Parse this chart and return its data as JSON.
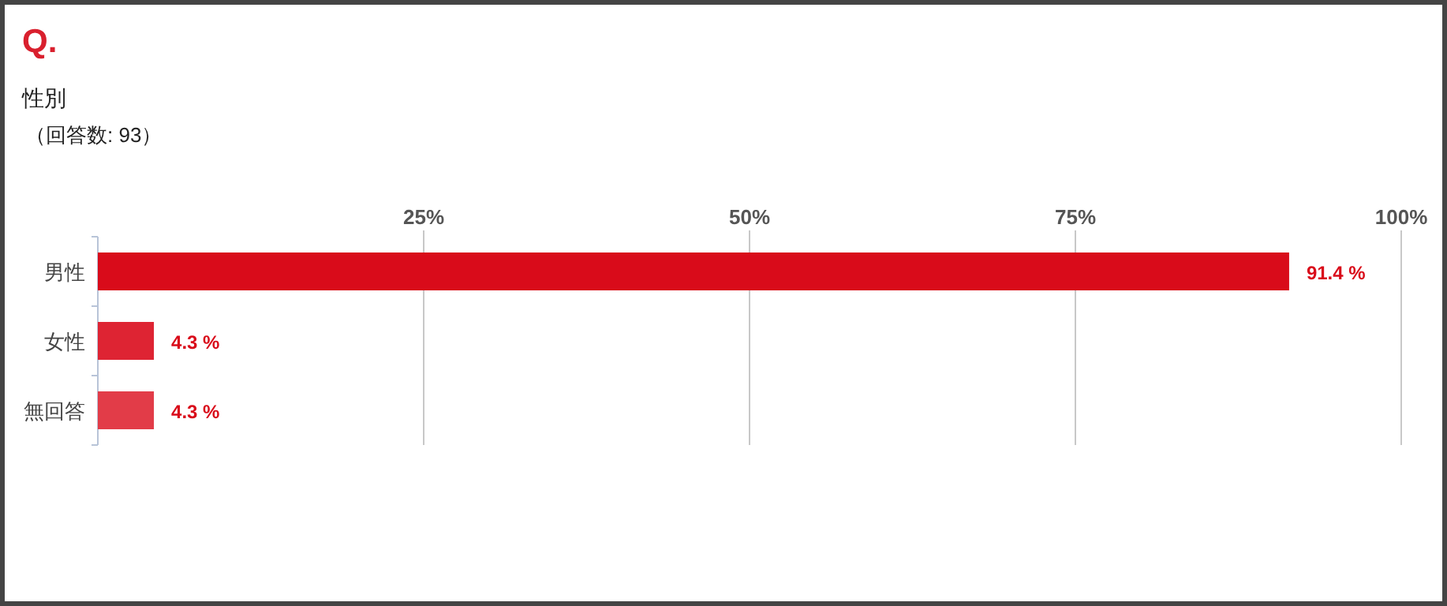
{
  "chart_data": {
    "type": "bar",
    "orientation": "horizontal",
    "title": "Q.",
    "subtitle": "性別",
    "annotations": [
      "（回答数: 93）"
    ],
    "categories": [
      "男性",
      "女性",
      "無回答"
    ],
    "values": [
      91.4,
      4.3,
      4.3
    ],
    "colors": [
      "#d90b1a",
      "#de2433",
      "#e23c48"
    ],
    "value_labels": [
      "91.4 %",
      "4.3 %",
      "4.3 %"
    ],
    "xlim": [
      0,
      100
    ],
    "xticks": [
      {
        "value": 25,
        "label": "25%"
      },
      {
        "value": 50,
        "label": "50%"
      },
      {
        "value": 75,
        "label": "75%"
      },
      {
        "value": 100,
        "label": "100%"
      }
    ],
    "grid": "x"
  }
}
